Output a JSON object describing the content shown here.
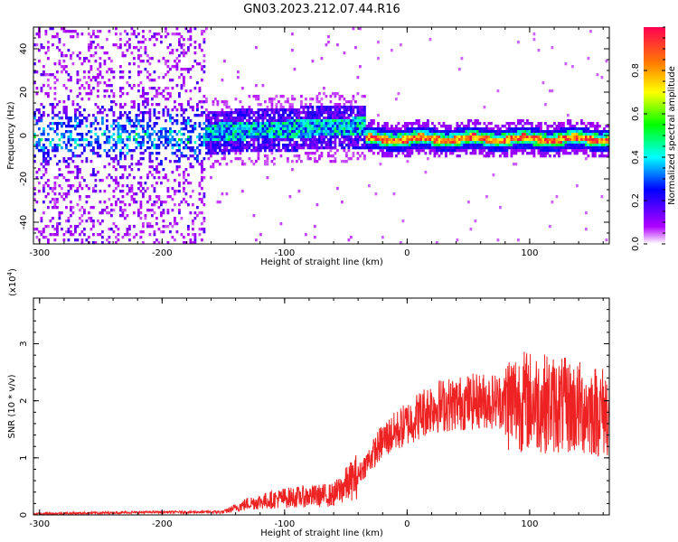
{
  "title": "GN03.2023.212.07.44.R16",
  "chart_data": [
    {
      "type": "heatmap",
      "xlabel": "Height of straight line (km)",
      "ylabel": "Frequency (Hz)",
      "xlim": [
        -305,
        165
      ],
      "ylim": [
        -50,
        50
      ],
      "x_ticks": [
        -300,
        -200,
        -100,
        0,
        100
      ],
      "y_ticks": [
        -40,
        -20,
        0,
        20,
        40
      ],
      "colorbar": {
        "label": "Normalized spectral amplitude",
        "range": [
          0,
          1
        ],
        "ticks": [
          "0.0",
          "0.2",
          "0.4",
          "0.6",
          "0.8"
        ],
        "tick_values": [
          0,
          0.2,
          0.4,
          0.6,
          0.8
        ],
        "colors": [
          "#ffffff",
          "#b000ff",
          "#0000ff",
          "#00ffff",
          "#00ff00",
          "#ffff00",
          "#ff8000",
          "#ff0050"
        ]
      },
      "regions": [
        {
          "x": [
            -305,
            -165
          ],
          "description_level": 0.15,
          "freq_spread": 50
        },
        {
          "x": [
            -165,
            -35
          ],
          "peak_level": 0.5,
          "center_freq": 3
        },
        {
          "x": [
            -35,
            165
          ],
          "peak_level": 0.9,
          "center_freq": -1
        }
      ]
    },
    {
      "type": "line",
      "xlabel": "Height of straight line (km)",
      "ylabel": "SNR (10 * v/v)",
      "y_multiplier": "(x10",
      "y_multiplier_exp": "4",
      "y_multiplier_close": ")",
      "xlim": [
        -305,
        165
      ],
      "ylim": [
        0,
        3.8
      ],
      "x_ticks": [
        -300,
        -200,
        -100,
        0,
        100
      ],
      "y_ticks": [
        0,
        1,
        2,
        3
      ],
      "color": "#ee2222",
      "trend": [
        {
          "x": -305,
          "y": 0.02
        },
        {
          "x": -200,
          "y": 0.05
        },
        {
          "x": -150,
          "y": 0.05
        },
        {
          "x": -130,
          "y": 0.2
        },
        {
          "x": -100,
          "y": 0.3
        },
        {
          "x": -60,
          "y": 0.35
        },
        {
          "x": -40,
          "y": 0.7
        },
        {
          "x": -20,
          "y": 1.3
        },
        {
          "x": 0,
          "y": 1.6
        },
        {
          "x": 20,
          "y": 1.9
        },
        {
          "x": 60,
          "y": 2.0
        },
        {
          "x": 80,
          "y": 2.0
        },
        {
          "x": 100,
          "y": 2.0
        },
        {
          "x": 130,
          "y": 1.9
        },
        {
          "x": 165,
          "y": 1.8
        }
      ]
    }
  ]
}
